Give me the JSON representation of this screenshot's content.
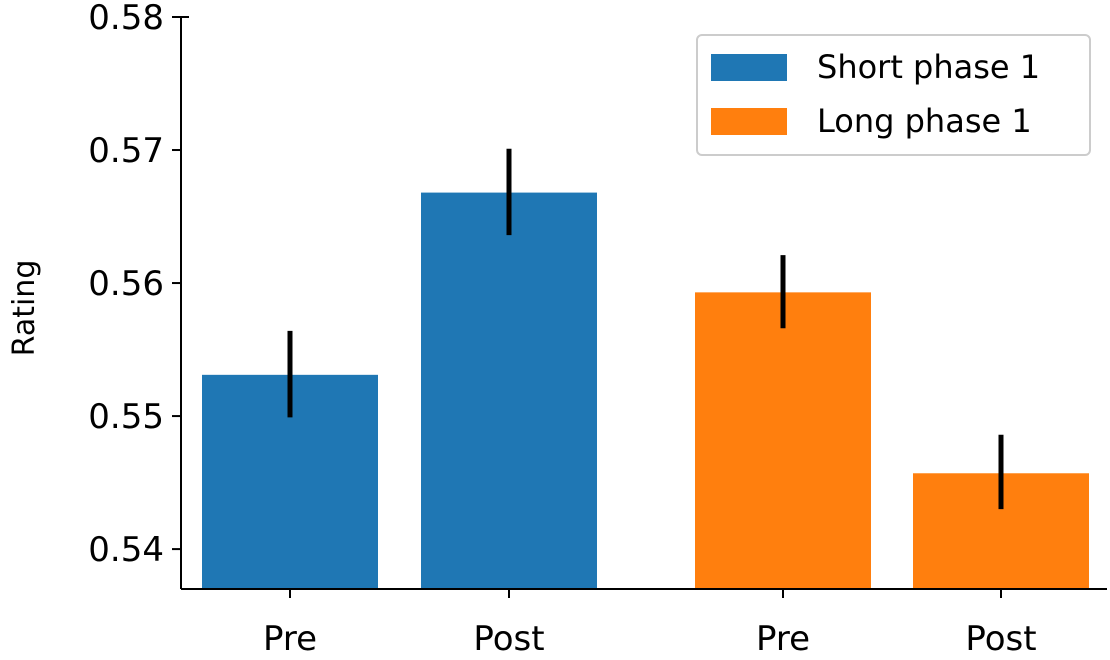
{
  "chart_data": {
    "type": "bar",
    "title": "",
    "xlabel": "",
    "ylabel": "Rating",
    "ylim": [
      0.537,
      0.58
    ],
    "yticks": [
      0.54,
      0.55,
      0.56,
      0.57,
      0.58
    ],
    "ytick_labels": [
      "0.54",
      "0.55",
      "0.56",
      "0.57",
      "0.58"
    ],
    "legend_position": "top-right",
    "bars": [
      {
        "category": "Pre",
        "series": "Short phase 1",
        "value": 0.5531,
        "err_low": 0.5499,
        "err_high": 0.5564
      },
      {
        "category": "Post",
        "series": "Short phase 1",
        "value": 0.5668,
        "err_low": 0.5636,
        "err_high": 0.5701
      },
      {
        "category": "Pre",
        "series": "Long phase 1",
        "value": 0.5593,
        "err_low": 0.5566,
        "err_high": 0.5621
      },
      {
        "category": "Post",
        "series": "Long phase 1",
        "value": 0.5457,
        "err_low": 0.543,
        "err_high": 0.5486
      }
    ],
    "series": [
      {
        "name": "Short phase 1",
        "color": "#1f77b4"
      },
      {
        "name": "Long phase 1",
        "color": "#ff7f0e"
      }
    ]
  }
}
